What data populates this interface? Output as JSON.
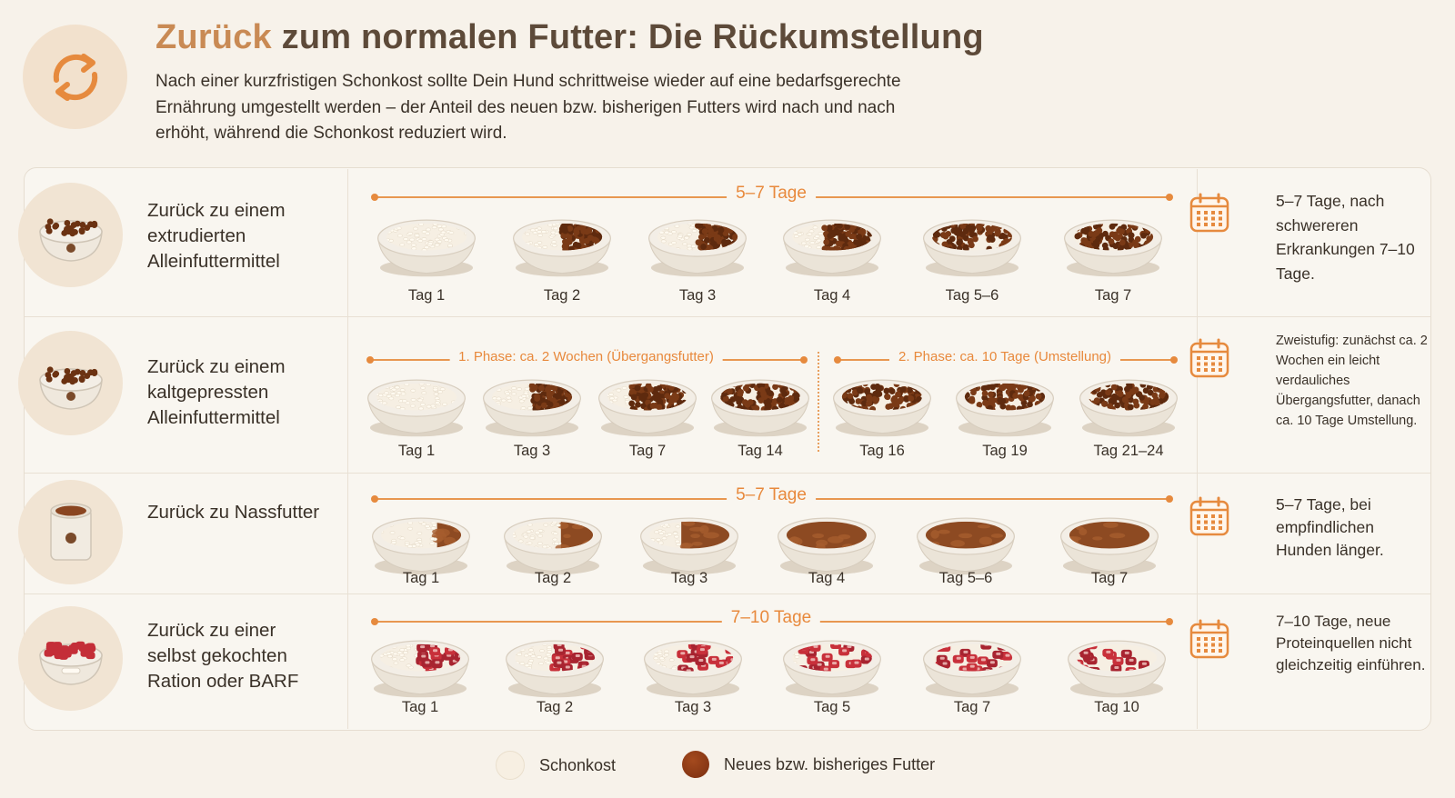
{
  "header": {
    "title_accent": "Zurück",
    "title_rest": " zum normalen Futter: Die Rückumstellung",
    "intro": "Nach einer kurzfristigen Schonkost sollte Dein Hund schrittweise wieder auf eine bedarfsgerechte Ernährung umgestellt werden – der Anteil des neuen bzw. bisherigen Futters wird nach und nach erhöht, während die Schonkost reduziert wird.",
    "icon": "refresh-cycle-icon"
  },
  "colors": {
    "accent": "#e8893c",
    "schonkost": "#f7efe2",
    "kibble": "#7a3f1c",
    "wet": "#9a4f22",
    "meat": "#c8323a",
    "bowl": "#ece5d9"
  },
  "rows": [
    {
      "label": "Zurück zu einem extrudierten Alleinfuttermittel",
      "icon": "kibble-bowl-icon",
      "food": "kibble",
      "phases": [
        {
          "label": "5–7 Tage",
          "days": [
            {
              "label": "Tag 1",
              "new_share": 0
            },
            {
              "label": "Tag 2",
              "new_share": 0.5
            },
            {
              "label": "Tag 3",
              "new_share": 0.5
            },
            {
              "label": "Tag 4",
              "new_share": 0.6
            },
            {
              "label": "Tag 5–6",
              "new_share": 1
            },
            {
              "label": "Tag 7",
              "new_share": 1
            }
          ]
        }
      ],
      "note": "5–7 Tage, nach schwereren Erkrankungen 7–10 Tage."
    },
    {
      "label": "Zurück zu einem kaltgepressten Alleinfuttermittel",
      "icon": "kibble-bowl-icon",
      "food": "kibble",
      "phases": [
        {
          "label": "1. Phase: ca. 2 Wochen (Übergangsfutter)",
          "days": [
            {
              "label": "Tag 1",
              "new_share": 0
            },
            {
              "label": "Tag 3",
              "new_share": 0.5
            },
            {
              "label": "Tag 7",
              "new_share": 0.7
            },
            {
              "label": "Tag 14",
              "new_share": 1
            }
          ]
        },
        {
          "label": "2. Phase: ca. 10 Tage (Umstellung)",
          "days": [
            {
              "label": "Tag 16",
              "new_share": 1
            },
            {
              "label": "Tag 19",
              "new_share": 1
            },
            {
              "label": "Tag 21–24",
              "new_share": 1
            }
          ]
        }
      ],
      "note": "Zweistufig: zunächst ca. 2 Wochen ein leicht verdauliches Übergangsfutter, danach ca. 10 Tage Umstellung."
    },
    {
      "label": "Zurück zu Nassfutter",
      "icon": "wet-food-can-icon",
      "food": "wet",
      "phases": [
        {
          "label": "5–7 Tage",
          "days": [
            {
              "label": "Tag 1",
              "new_share": 0.3
            },
            {
              "label": "Tag 2",
              "new_share": 0.4
            },
            {
              "label": "Tag 3",
              "new_share": 0.6
            },
            {
              "label": "Tag 4",
              "new_share": 1
            },
            {
              "label": "Tag 5–6",
              "new_share": 1
            },
            {
              "label": "Tag 7",
              "new_share": 1
            }
          ]
        }
      ],
      "note": "5–7 Tage, bei empfindlichen Hunden länger."
    },
    {
      "label": "Zurück zu einer selbst gekochten Ration oder BARF",
      "icon": "raw-meat-bowl-icon",
      "food": "meat",
      "phases": [
        {
          "label": "7–10 Tage",
          "days": [
            {
              "label": "Tag 1",
              "new_share": 0.5
            },
            {
              "label": "Tag 2",
              "new_share": 0.5
            },
            {
              "label": "Tag 3",
              "new_share": 0.7
            },
            {
              "label": "Tag 5",
              "new_share": 0.9
            },
            {
              "label": "Tag 7",
              "new_share": 1
            },
            {
              "label": "Tag 10",
              "new_share": 1
            }
          ]
        }
      ],
      "note": "7–10 Tage, neue Proteinquellen nicht gleichzeitig einführen."
    }
  ],
  "legend": [
    {
      "label": "Schonkost",
      "color": "#f7efe2"
    },
    {
      "label": "Neues bzw. bisheriges Futter",
      "color": "#8a3a16"
    }
  ]
}
